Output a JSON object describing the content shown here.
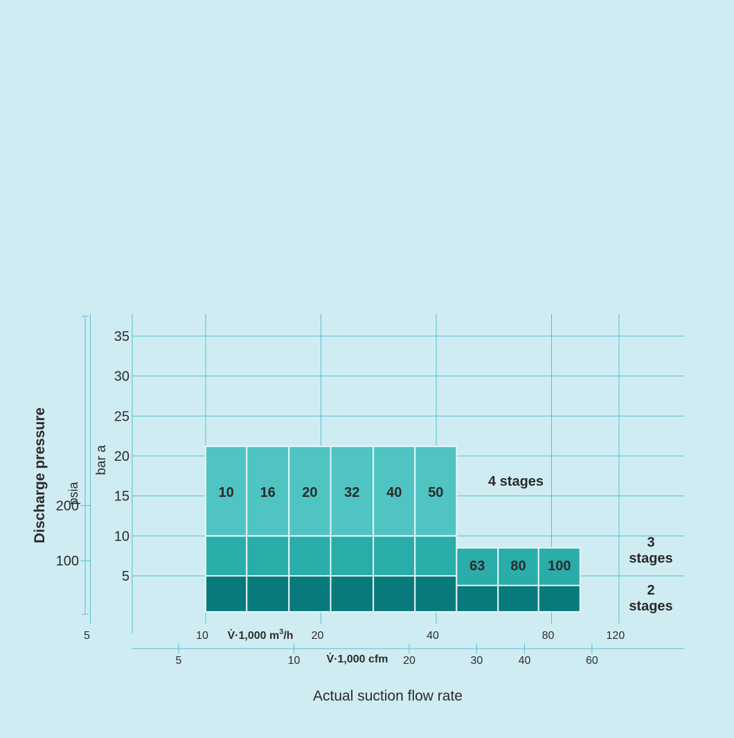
{
  "chart_data": {
    "type": "bar",
    "title": "",
    "xlabel": "Actual suction flow rate",
    "ylabel": "Discharge pressure",
    "log_x": true,
    "grid": true,
    "colors": {
      "background": "#d0ecf3",
      "grid": "#52bfcc",
      "axis_text": "#2b2b2b",
      "stage4": "#4fc4c3",
      "stage3": "#2aaca9",
      "stage2": "#087a7c",
      "cell_border": "#e8f6f8",
      "label": "#2a2a2a"
    },
    "y_axis_bar": {
      "unit_label": "bar a",
      "ylim": [
        0,
        37.5
      ],
      "ticks": [
        5,
        10,
        15,
        20,
        25,
        30,
        35
      ],
      "tick_labels": [
        "5",
        "10",
        "15",
        "20",
        "25",
        "30",
        "35"
      ]
    },
    "y_axis_psia": {
      "unit_label": "psia",
      "ticks": [
        100,
        200
      ],
      "tick_labels": [
        "100",
        "200"
      ],
      "range_bar": [
        0.2,
        37.5
      ]
    },
    "x_axis_m3h": {
      "label_prefix": "V̇·1,000 m",
      "label_superscript": "3",
      "label_suffix": "/h",
      "xlim": [
        3.7,
        200
      ],
      "ticks": [
        5,
        10,
        20,
        40,
        80,
        120
      ],
      "tick_labels": [
        "5",
        "10",
        "20",
        "40",
        "80",
        "120"
      ]
    },
    "x_axis_cfm": {
      "label": "V̇·1,000 cfm",
      "ticks": [
        5,
        10,
        20,
        30,
        40,
        60
      ],
      "tick_labels": [
        "5",
        "10",
        "20",
        "30",
        "40",
        "60"
      ],
      "m3h_equivalent": [
        8.5,
        17,
        34,
        51,
        68,
        102
      ]
    },
    "grid_x_values": [
      5,
      10,
      20,
      40,
      80,
      120
    ],
    "grid_y_values": [
      5,
      10,
      15,
      20,
      25,
      30,
      35
    ],
    "sizes": [
      "10",
      "16",
      "20",
      "32",
      "40",
      "50",
      "63",
      "80",
      "100"
    ],
    "size_bounds_m3h": [
      10,
      12.8,
      16.5,
      21.2,
      27.4,
      35.2,
      45.2,
      58,
      74,
      95
    ],
    "series": [
      {
        "name": "2 stages",
        "label_lines": [
          "2",
          "stages"
        ],
        "y_from": 0.5,
        "values": [
          5,
          5,
          5,
          5,
          5,
          5,
          3.8,
          3.8,
          3.8
        ]
      },
      {
        "name": "3 stages",
        "label_lines": [
          "3",
          "stages"
        ],
        "y_from": "prev",
        "values": [
          10,
          10,
          10,
          10,
          10,
          10,
          8.5,
          8.5,
          8.5
        ]
      },
      {
        "name": "4 stages",
        "label_lines": [
          "4 stages"
        ],
        "y_from": "prev",
        "values": [
          21.2,
          21.2,
          21.2,
          21.2,
          21.2,
          21.2,
          null,
          null,
          null
        ]
      }
    ],
    "size_label_y": [
      15.5,
      15.5,
      15.5,
      15.5,
      15.5,
      15.5,
      6.3,
      6.3,
      6.3
    ]
  }
}
